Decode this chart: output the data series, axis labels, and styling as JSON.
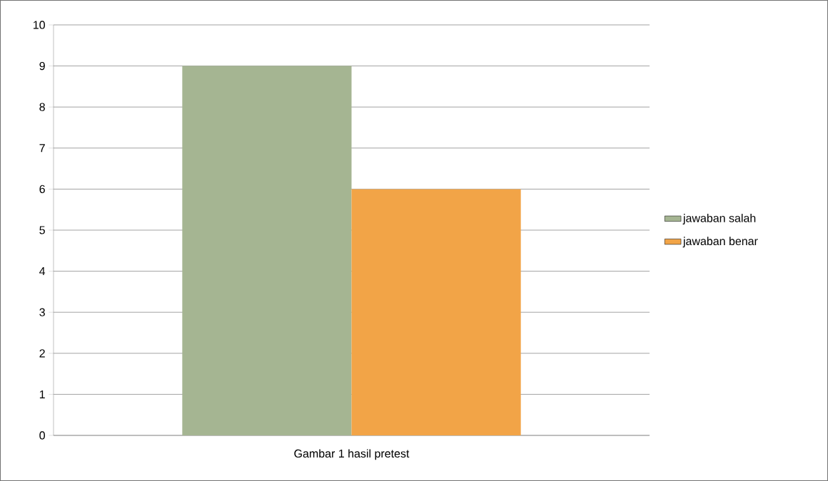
{
  "chart_data": {
    "type": "bar",
    "categories": [
      "Gambar 1 hasil pretest"
    ],
    "series": [
      {
        "name": "jawaban salah",
        "color": "#a5b592",
        "values": [
          9
        ]
      },
      {
        "name": "jawaban benar",
        "color": "#f2a447",
        "values": [
          6
        ]
      }
    ],
    "ylim": [
      0,
      10
    ],
    "yticks": [
      0,
      1,
      2,
      3,
      4,
      5,
      6,
      7,
      8,
      9,
      10
    ],
    "grid": "y",
    "legend": "right"
  }
}
